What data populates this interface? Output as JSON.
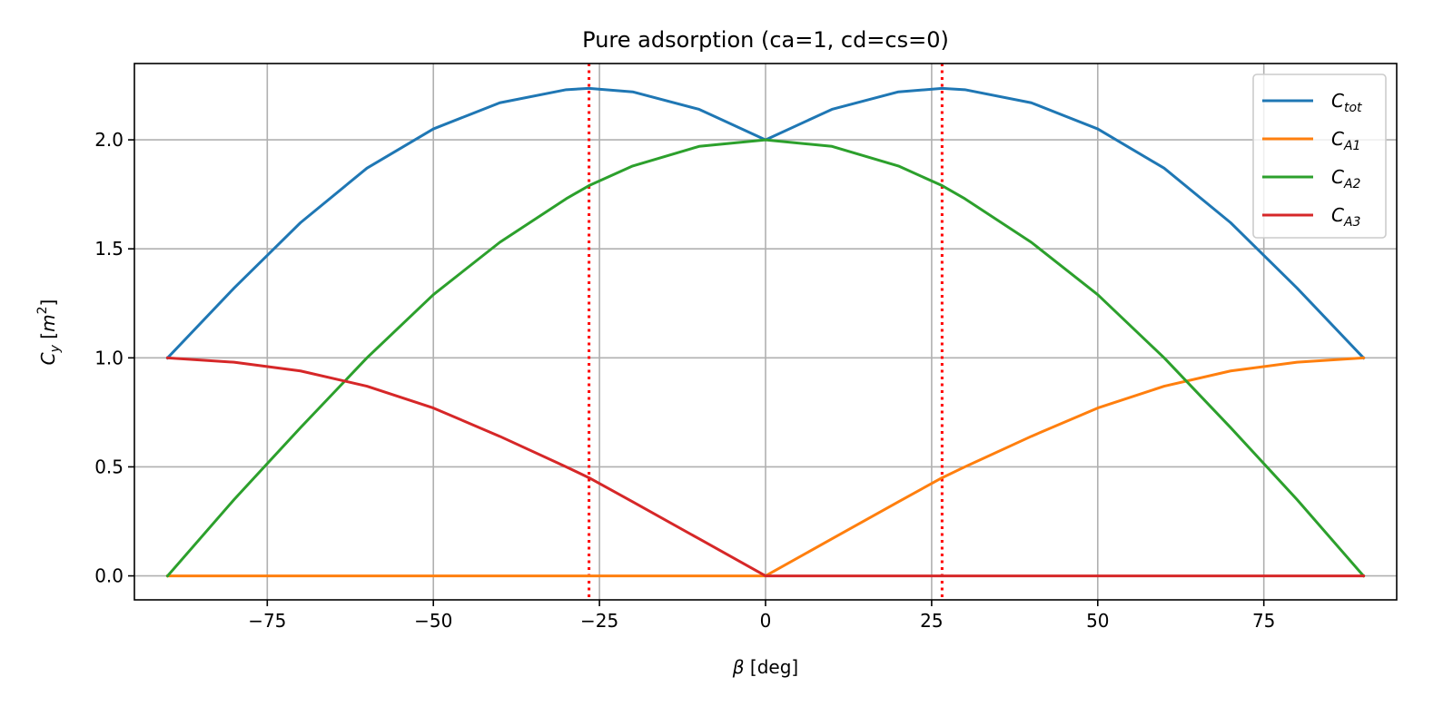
{
  "chart_data": {
    "type": "line",
    "title": "Pure adsorption (ca=1, cd=cs=0)",
    "xlabel_symbol": "β",
    "xlabel_unit": " [deg]",
    "ylabel_symbol": "C",
    "ylabel_sub": "y",
    "ylabel_unit_open": " [",
    "ylabel_unit_symbol": "m",
    "ylabel_unit_sup": "2",
    "ylabel_unit_close": "]",
    "xlim": [
      -95,
      95
    ],
    "ylim": [
      -0.11,
      2.35
    ],
    "xticks": [
      -75,
      -50,
      -25,
      0,
      25,
      50,
      75
    ],
    "xtick_labels": [
      "−75",
      "−50",
      "−25",
      "0",
      "25",
      "50",
      "75"
    ],
    "yticks": [
      0.0,
      0.5,
      1.0,
      1.5,
      2.0
    ],
    "ytick_labels": [
      "0.0",
      "0.5",
      "1.0",
      "1.5",
      "2.0"
    ],
    "grid": true,
    "legend_position": "top-right",
    "x": [
      -90,
      -80,
      -70,
      -60,
      -50,
      -40,
      -30,
      -26.57,
      -20,
      -10,
      0,
      10,
      20,
      26.57,
      30,
      40,
      50,
      60,
      70,
      80,
      90
    ],
    "series": [
      {
        "name_base": "C",
        "name_sub": "tot",
        "color": "#1f77b4",
        "values": [
          1.0,
          1.32,
          1.62,
          1.87,
          2.05,
          2.17,
          2.23,
          2.236,
          2.22,
          2.14,
          2.0,
          2.14,
          2.22,
          2.236,
          2.23,
          2.17,
          2.05,
          1.87,
          1.62,
          1.32,
          1.0
        ]
      },
      {
        "name_base": "C",
        "name_sub": "A1",
        "color": "#ff7f0e",
        "values": [
          0,
          0,
          0,
          0,
          0,
          0,
          0,
          0,
          0,
          0,
          0,
          0.17,
          0.34,
          0.45,
          0.5,
          0.64,
          0.77,
          0.87,
          0.94,
          0.98,
          1.0
        ]
      },
      {
        "name_base": "C",
        "name_sub": "A2",
        "color": "#2ca02c",
        "values": [
          0,
          0.35,
          0.68,
          1.0,
          1.29,
          1.53,
          1.73,
          1.79,
          1.88,
          1.97,
          2.0,
          1.97,
          1.88,
          1.79,
          1.73,
          1.53,
          1.29,
          1.0,
          0.68,
          0.35,
          0
        ]
      },
      {
        "name_base": "C",
        "name_sub": "A3",
        "color": "#d62728",
        "values": [
          1.0,
          0.98,
          0.94,
          0.87,
          0.77,
          0.64,
          0.5,
          0.45,
          0.34,
          0.17,
          0,
          0,
          0,
          0,
          0,
          0,
          0,
          0,
          0,
          0,
          0
        ]
      }
    ],
    "vlines": [
      {
        "x": -26.57,
        "color": "#ff0000",
        "style": "dotted"
      },
      {
        "x": 26.57,
        "color": "#ff0000",
        "style": "dotted"
      }
    ]
  }
}
